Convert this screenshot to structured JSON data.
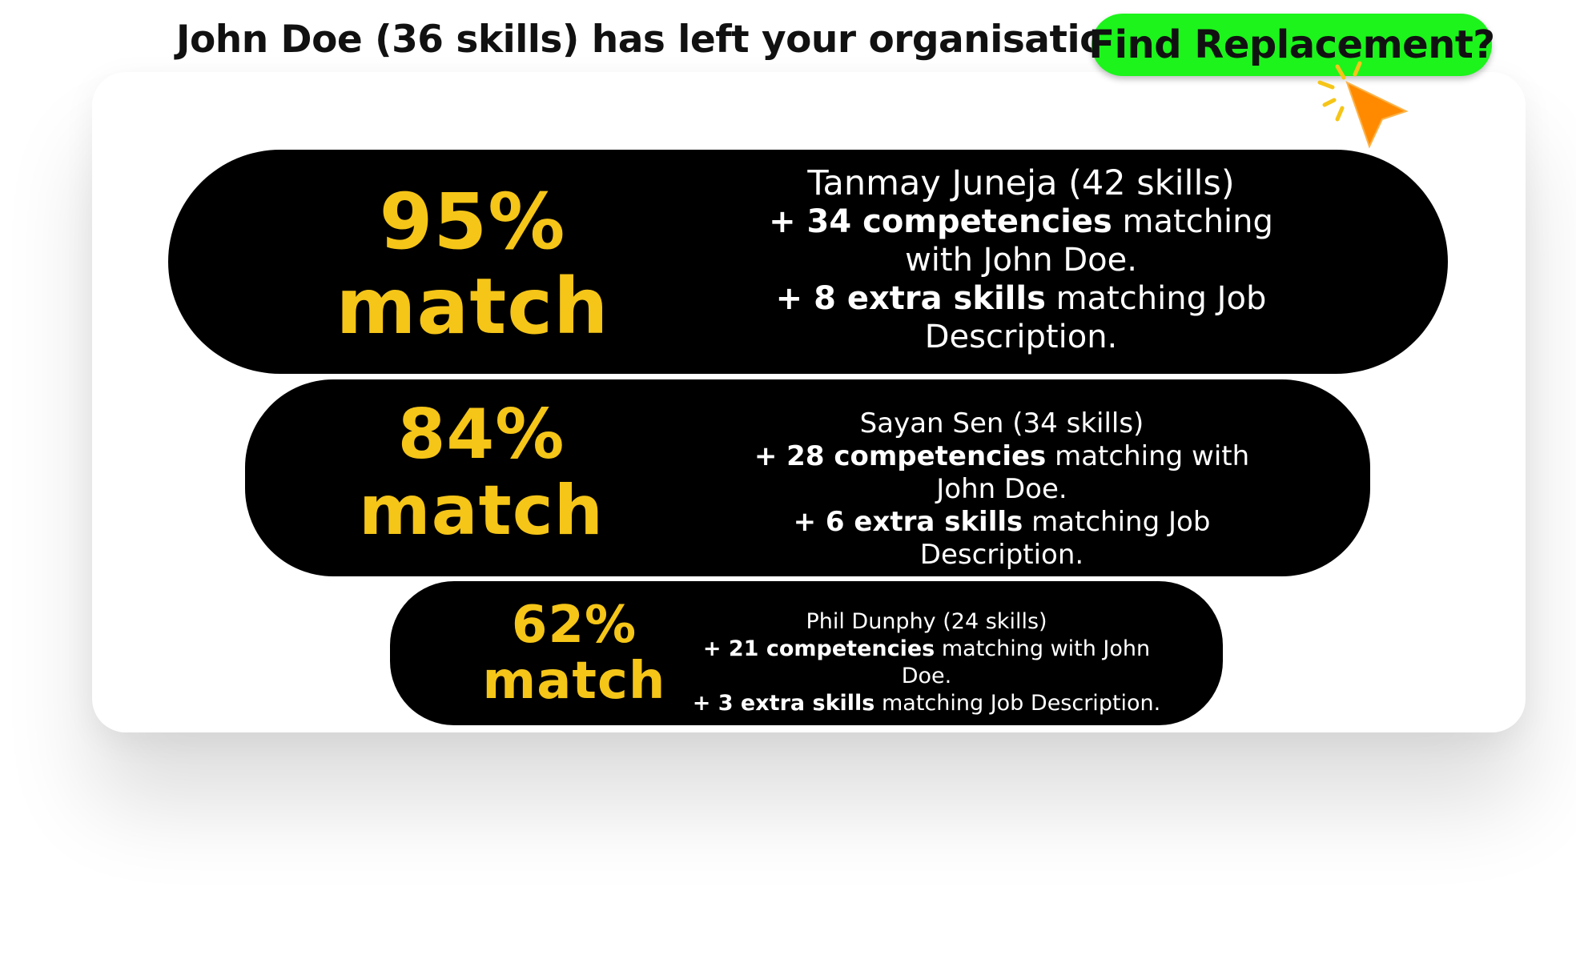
{
  "header": {
    "title": "John Doe (36 skills) has left your organisation.",
    "action_label": "Find Replacement?"
  },
  "colors": {
    "accent_green": "#1cf41c",
    "match_yellow": "#f5c518",
    "cursor_orange": "#ff8a00",
    "panel_black": "#000000"
  },
  "icons": {
    "cursor": "click-cursor-icon"
  },
  "candidates": [
    {
      "percent": "95%",
      "match_word": "match",
      "name": "Tanmay Juneja",
      "skills": "(42 skills)",
      "line1_bold": "+ 34 competencies",
      "line1_rest": "matching with John Doe.",
      "line2_bold": "+ 8 extra skills",
      "line2_rest": "matching Job Description."
    },
    {
      "percent": "84%",
      "match_word": "match",
      "name": "Sayan Sen",
      "skills": "(34 skills)",
      "line1_bold": "+ 28 competencies",
      "line1_rest": "matching with John Doe.",
      "line2_bold": "+ 6 extra skills",
      "line2_rest": "matching Job Description."
    },
    {
      "percent": "62%",
      "match_word": "match",
      "name": "Phil Dunphy",
      "skills": "(24 skills)",
      "line1_bold": "+ 21 competencies",
      "line1_rest": "matching with John Doe.",
      "line2_bold": "+ 3 extra skills",
      "line2_rest": "matching Job Description."
    }
  ]
}
